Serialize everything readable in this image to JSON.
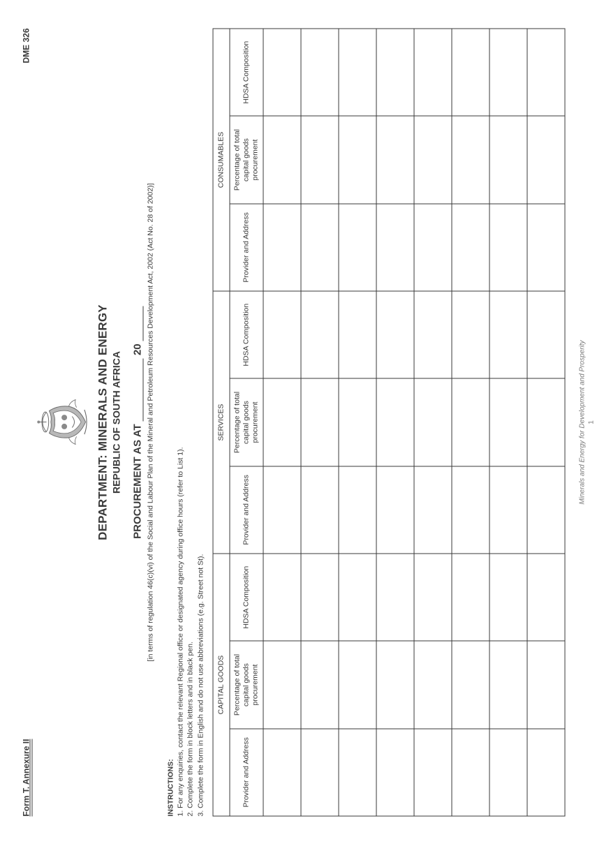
{
  "header": {
    "form_title": "Form T. Annexure II",
    "dme_code": "DME 326"
  },
  "titles": {
    "department": "DEPARTMENT: MINERALS AND ENERGY",
    "republic": "REPUBLIC OF SOUTH AFRICA",
    "proc_prefix": "PROCUREMENT AS AT",
    "proc_year_prefix": "20",
    "regulation": "[in terms of regulation 46(c)(vi) of the Social and Labour Plan of the Mineral and Petroleum Resources Development Act, 2002 (Act No. 28 of 2002)]"
  },
  "instructions": {
    "heading": "INSTRUCTIONS:",
    "items": [
      "1. For any enquiries, contact the relevant Regional office or designated agency during office hours (refer to List 1).",
      "2. Complete the form in block letters and in black pen.",
      "3. Complete the form in English and do not use abbreviations (e.g. Street not St)."
    ]
  },
  "table": {
    "groups": [
      "CAPITAL GOODS",
      "SERVICES",
      "CONSUMABLES"
    ],
    "sub_headers": {
      "provider": "Provider and Address",
      "percentage": "Percentage of total capital goods procurement",
      "hdsa": "HDSA Composition"
    },
    "num_data_rows": 8,
    "border_color": "#3a3a3a"
  },
  "footer": {
    "tagline": "Minerals and Energy for Development and Prosperity",
    "page_number": "1"
  },
  "colors": {
    "text": "#3a3a3a",
    "footer_text": "#7a7a7a",
    "background": "#ffffff"
  },
  "crest": {
    "stroke": "#6a6a6a",
    "fill_light": "#b8b8b8",
    "fill_dark": "#8a8a8a"
  }
}
